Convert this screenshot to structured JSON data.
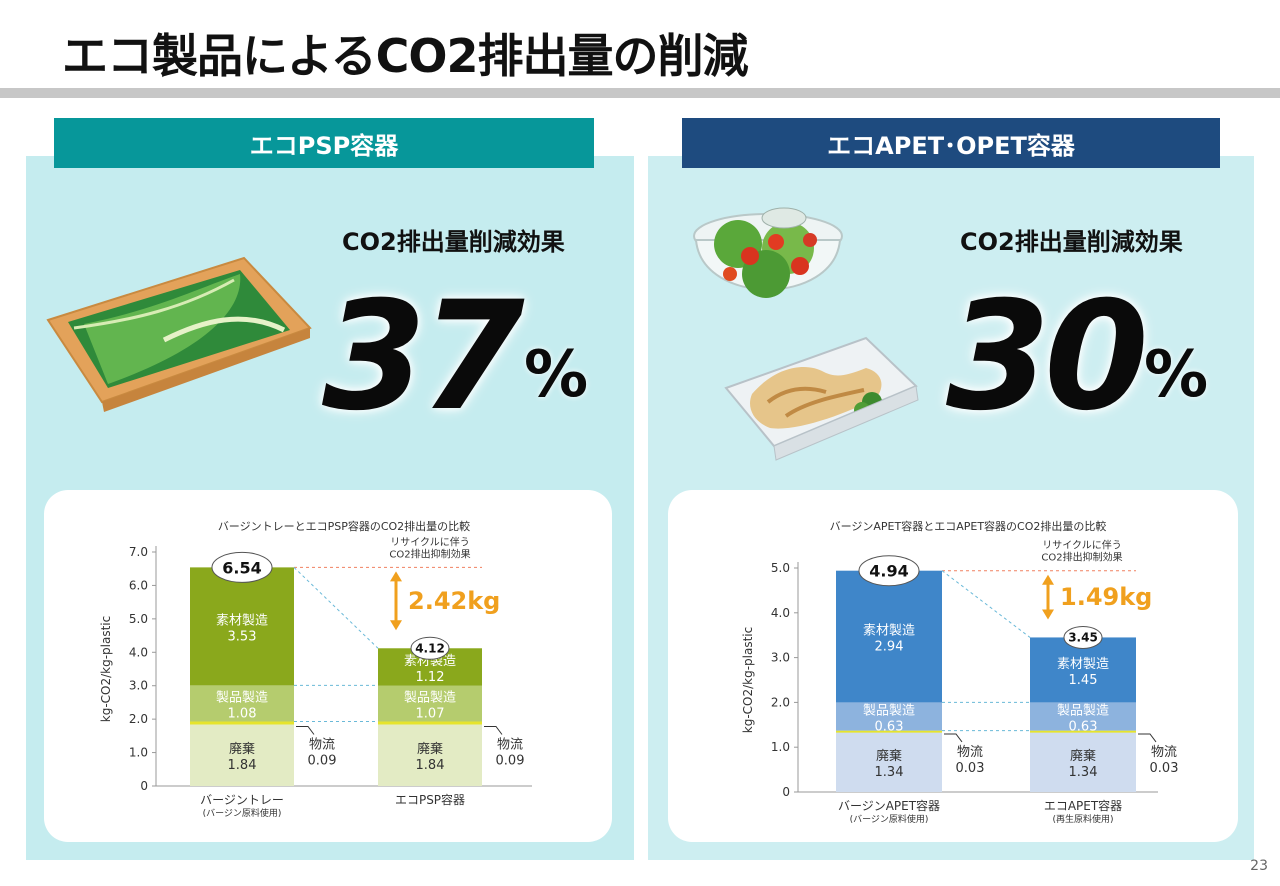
{
  "page": {
    "title": "エコ製品によるCO2排出量の削減",
    "page_number": "23"
  },
  "left": {
    "tab": "エコPSP容器",
    "effect_label": "CO2排出量削減効果",
    "reduction": "37",
    "percent_sign": "%"
  },
  "right": {
    "tab": "エコAPET･OPET容器",
    "effect_label": "CO2排出量削減効果",
    "reduction": "30",
    "percent_sign": "%"
  },
  "colors": {
    "teal": "#07979a",
    "navy": "#1e4b7f",
    "psp_material": "#8aa81c",
    "psp_product": "#b5cc6e",
    "psp_disposal": "#e3ebc4",
    "apet_material": "#3f86c9",
    "apet_product": "#8db3de",
    "apet_disposal": "#cfdcef",
    "logistics": "#e6e42c",
    "orange": "#f0a01e"
  },
  "chart_data": [
    {
      "type": "bar",
      "stacked": true,
      "title": "バージントレーとエコPSP容器のCO2排出量の比較",
      "ylabel": "kg-CO2/kg-plastic",
      "ylim": [
        0,
        7.0
      ],
      "yticks": [
        "0",
        "1.0",
        "2.0",
        "3.0",
        "4.0",
        "5.0",
        "6.0",
        "7.0"
      ],
      "categories": [
        "バージントレー",
        "エコPSP容器"
      ],
      "category_notes": [
        "(バージン原料使用)",
        ""
      ],
      "totals": [
        "6.54",
        "4.12"
      ],
      "series": [
        {
          "name": "廃棄",
          "values": [
            1.84,
            1.84
          ]
        },
        {
          "name": "物流",
          "values": [
            0.09,
            0.09
          ]
        },
        {
          "name": "製品製造",
          "values": [
            1.08,
            1.07
          ]
        },
        {
          "name": "素材製造",
          "values": [
            3.53,
            1.12
          ]
        }
      ],
      "annotation": {
        "label": "リサイクルに伴う",
        "label2": "CO2排出抑制効果",
        "value": "2.42kg"
      }
    },
    {
      "type": "bar",
      "stacked": true,
      "title": "バージンAPET容器とエコAPET容器のCO2排出量の比較",
      "ylabel": "kg-CO2/kg-plastic",
      "ylim": [
        0,
        5.0
      ],
      "yticks": [
        "0",
        "1.0",
        "2.0",
        "3.0",
        "4.0",
        "5.0"
      ],
      "categories": [
        "バージンAPET容器",
        "エコAPET容器"
      ],
      "category_notes": [
        "(バージン原料使用)",
        "(再生原料使用)"
      ],
      "totals": [
        "4.94",
        "3.45"
      ],
      "series": [
        {
          "name": "廃棄",
          "values": [
            1.34,
            1.34
          ]
        },
        {
          "name": "物流",
          "values": [
            0.03,
            0.03
          ]
        },
        {
          "name": "製品製造",
          "values": [
            0.63,
            0.63
          ]
        },
        {
          "name": "素材製造",
          "values": [
            2.94,
            1.45
          ]
        }
      ],
      "annotation": {
        "label": "リサイクルに伴う",
        "label2": "CO2排出抑制効果",
        "value": "1.49kg"
      }
    }
  ]
}
